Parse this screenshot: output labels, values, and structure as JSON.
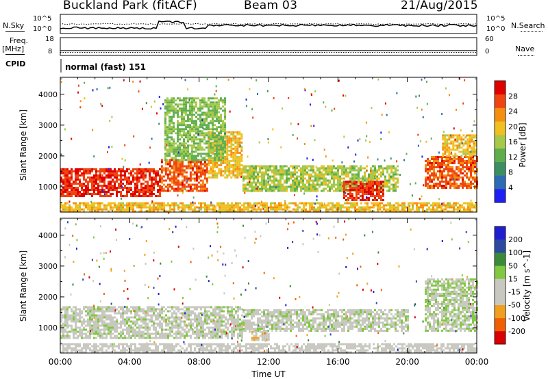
{
  "header": {
    "station": "Buckland Park (fitACF)",
    "beam": "Beam 03",
    "date": "21/Aug/2015"
  },
  "noise_panel": {
    "left_label": "N.Sky",
    "right_label": "N.Search",
    "left_ticks": [
      "10^5",
      "10^0"
    ],
    "right_ticks": [
      "10^5",
      "10^0"
    ]
  },
  "freq_panel": {
    "left_label_line1": "Freq.",
    "left_label_line2": "[MHz]",
    "right_label": "Nave",
    "left_ticks": [
      "18",
      "8"
    ],
    "right_ticks": [
      "60",
      "0"
    ]
  },
  "cpid_panel": {
    "label": "CPID",
    "mode": "normal (fast) 151"
  },
  "colors": {
    "power": [
      "#1f1ff5",
      "#2f6bb5",
      "#3d8f63",
      "#5fae4e",
      "#a6c94a",
      "#f0c020",
      "#f58f10",
      "#f04510",
      "#e00000"
    ],
    "velocity": [
      "#d80000",
      "#f06000",
      "#f0a020",
      "#c8c8c0",
      "#c8c8c0",
      "#80c840",
      "#3a8a3a",
      "#2c4aa0",
      "#1f1fd0"
    ]
  },
  "chart_data": [
    {
      "type": "heatmap",
      "name": "power",
      "ylabel": "Slant Range [km]",
      "yticks": [
        1000,
        2000,
        3000,
        4000
      ],
      "ylim": [
        180,
        4550
      ],
      "xlim": [
        0,
        24
      ],
      "colorbar": {
        "label": "Power [dB]",
        "ticks": [
          "4",
          "8",
          "12",
          "16",
          "20",
          "24",
          "28"
        ],
        "range": [
          0,
          32
        ]
      },
      "features": [
        {
          "t0": 0.0,
          "t1": 5.8,
          "r0": 700,
          "r1": 1600,
          "level": 28
        },
        {
          "t0": 5.8,
          "t1": 8.5,
          "r0": 900,
          "r1": 1900,
          "level": 26
        },
        {
          "t0": 8.5,
          "t1": 10.5,
          "r0": 1300,
          "r1": 2800,
          "level": 20
        },
        {
          "t0": 10.5,
          "t1": 19.5,
          "r0": 900,
          "r1": 1700,
          "level": 16
        },
        {
          "t0": 16.3,
          "t1": 18.6,
          "r0": 600,
          "r1": 1200,
          "level": 28
        },
        {
          "t0": 21.0,
          "t1": 24.0,
          "r0": 1000,
          "r1": 2000,
          "level": 26
        },
        {
          "t0": 22.0,
          "t1": 24.0,
          "r0": 2000,
          "r1": 2700,
          "level": 20
        },
        {
          "t0": 6.0,
          "t1": 9.5,
          "r0": 1900,
          "r1": 3900,
          "level": 14
        },
        {
          "t0": 0.0,
          "t1": 24.0,
          "r0": 180,
          "r1": 500,
          "level": 20
        }
      ]
    },
    {
      "type": "heatmap",
      "name": "velocity",
      "ylabel": "Slant Range [km]",
      "yticks": [
        1000,
        2000,
        3000,
        4000
      ],
      "ylim": [
        180,
        4550
      ],
      "xlim": [
        0,
        24
      ],
      "colorbar": {
        "label": "Velocity [m s^-1]",
        "ticks": [
          "-200",
          "-100",
          "-50",
          "-15",
          "15",
          "50",
          "100",
          "200"
        ],
        "range": [
          -250,
          250
        ]
      },
      "features": [
        {
          "t0": 0.0,
          "t1": 10.5,
          "r0": 700,
          "r1": 1700,
          "level": 0
        },
        {
          "t0": 10.5,
          "t1": 20.0,
          "r0": 900,
          "r1": 1600,
          "level": 0
        },
        {
          "t0": 11.0,
          "t1": 12.0,
          "r0": 600,
          "r1": 900,
          "level": -60
        },
        {
          "t0": 21.0,
          "t1": 24.0,
          "r0": 900,
          "r1": 2600,
          "level": 20
        },
        {
          "t0": 0.0,
          "t1": 24.0,
          "r0": 180,
          "r1": 500,
          "level": -30
        }
      ]
    }
  ],
  "x_axis": {
    "ticks": [
      "00:00",
      "04:00",
      "08:00",
      "12:00",
      "16:00",
      "20:00",
      "00:00"
    ],
    "label": "Time UT"
  }
}
